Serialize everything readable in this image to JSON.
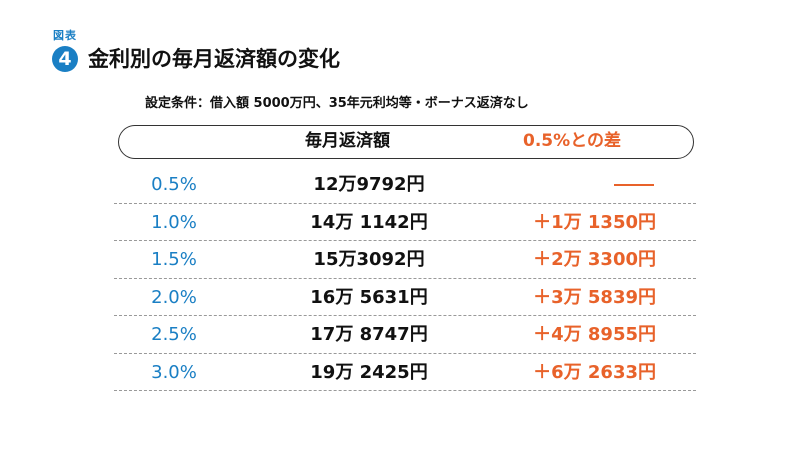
{
  "figure": {
    "label": "図表",
    "number": "4",
    "title": "金利別の毎月返済額の変化"
  },
  "condition": "設定条件：借入額 5000万円、35年元利均等・ボーナス返済なし",
  "table": {
    "headers": {
      "rate": "",
      "monthly": "毎月返済額",
      "diff": "0.5%との差"
    },
    "rows": [
      {
        "rate": "0.5%",
        "monthly": "12万9792円",
        "diff": ""
      },
      {
        "rate": "1.0%",
        "monthly": "14万 1142円",
        "diff": "＋1万 1350円"
      },
      {
        "rate": "1.5%",
        "monthly": "15万3092円",
        "diff": "＋2万 3300円"
      },
      {
        "rate": "2.0%",
        "monthly": "16万 5631円",
        "diff": "＋3万 5839円"
      },
      {
        "rate": "2.5%",
        "monthly": "17万 8747円",
        "diff": "＋4万 8955円"
      },
      {
        "rate": "3.0%",
        "monthly": "19万 2425円",
        "diff": "＋6万 2633円"
      }
    ]
  },
  "colors": {
    "accent_blue": "#1a7fc4",
    "accent_orange": "#e8622a",
    "text": "#111111"
  }
}
